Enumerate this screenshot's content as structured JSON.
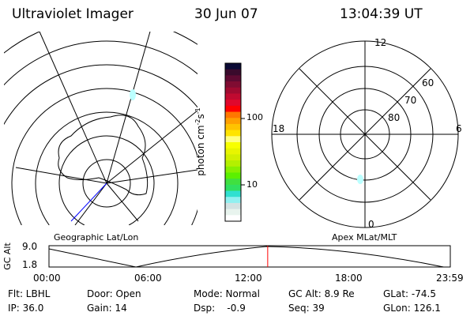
{
  "header": {
    "instrument": "Ultraviolet Imager",
    "date": "30 Jun 07",
    "time": "13:04:39 UT"
  },
  "left_plot": {
    "label": "Geographic Lat/Lon"
  },
  "right_plot": {
    "label": "Apex MLat/MLT",
    "mlt_labels": [
      "12",
      "6",
      "0",
      "18"
    ],
    "lat_labels": [
      "60",
      "70",
      "80"
    ]
  },
  "colorbar": {
    "unit": "photon cm",
    "exp1": "-2",
    "s": "s",
    "exp2": "-1",
    "ticks": [
      "100",
      "10"
    ],
    "colors": [
      "#0a0a35",
      "#3a0a2c",
      "#5e0a32",
      "#800c32",
      "#a00a30",
      "#c00a30",
      "#e0082c",
      "#ff0000",
      "#ff7700",
      "#ffa000",
      "#ffc300",
      "#ffe400",
      "#ffff80",
      "#f8ff00",
      "#e8f500",
      "#d2f000",
      "#b4f000",
      "#88f000",
      "#5cf000",
      "#40e040",
      "#30e060",
      "#30e0d0",
      "#90f0f0",
      "#d2e2e2",
      "#e8f4ee",
      "#ffffff"
    ]
  },
  "timeline": {
    "ylabel": "GC Alt",
    "yticks": [
      "9.0",
      "1.8"
    ],
    "xticks": [
      "00:00",
      "06:00",
      "12:00",
      "18:00",
      "23:59"
    ],
    "current_time_hours": 13.08,
    "marker_color": "#ff0000"
  },
  "status": {
    "row1": [
      "Flt: LBHL",
      "Door: Open",
      "Mode: Normal",
      "GC Alt: 8.9 Re",
      "GLat: -74.5"
    ],
    "row2": [
      "IP: 36.0",
      "Gain: 14",
      "Dsp:    -0.9",
      "Seq: 39",
      "GLon: 126.1"
    ]
  }
}
